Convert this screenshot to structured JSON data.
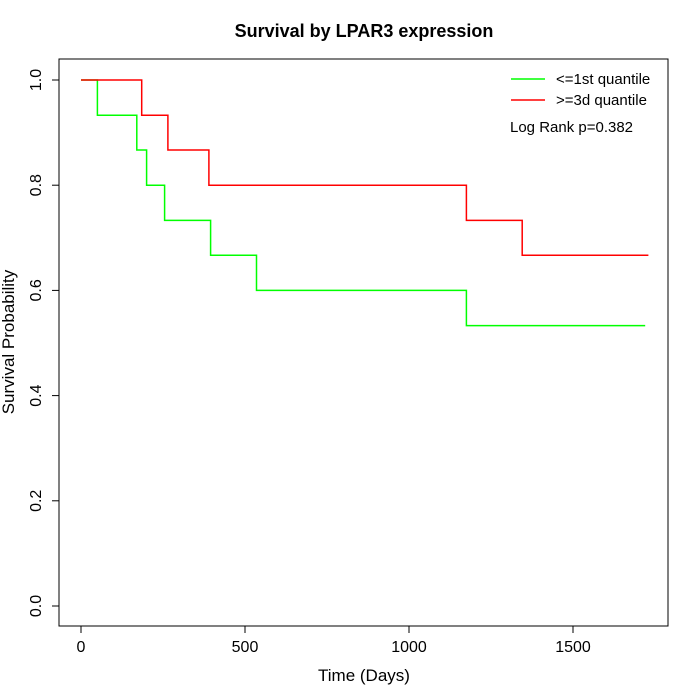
{
  "chart_data": {
    "type": "line",
    "title": "Survival by LPAR3 expression",
    "xlabel": "Time (Days)",
    "ylabel": "Survival Probability",
    "xlim": [
      0,
      1750
    ],
    "ylim": [
      0,
      1
    ],
    "xticks": [
      0,
      500,
      1000,
      1500
    ],
    "xtick_labels": [
      "0",
      "500",
      "1000",
      "1500"
    ],
    "yticks": [
      0,
      0.2,
      0.4,
      0.6,
      0.8,
      1
    ],
    "ytick_labels": [
      "0.0",
      "0.2",
      "0.4",
      "0.6",
      "0.8",
      "1.0"
    ],
    "step": true,
    "grid": false,
    "legend_position": "top-right",
    "annotation": "Log Rank p=0.382",
    "series": [
      {
        "name": "<=1st quantile",
        "color": "#00ff00",
        "x": [
          0,
          50,
          170,
          200,
          255,
          395,
          535,
          1175,
          1720
        ],
        "y": [
          1.0,
          0.933,
          0.867,
          0.8,
          0.733,
          0.667,
          0.6,
          0.533,
          0.533
        ]
      },
      {
        "name": ">=3d quantile",
        "color": "#ff0000",
        "x": [
          0,
          185,
          265,
          390,
          1175,
          1345,
          1730
        ],
        "y": [
          1.0,
          0.933,
          0.867,
          0.8,
          0.733,
          0.667,
          0.667
        ]
      }
    ]
  }
}
